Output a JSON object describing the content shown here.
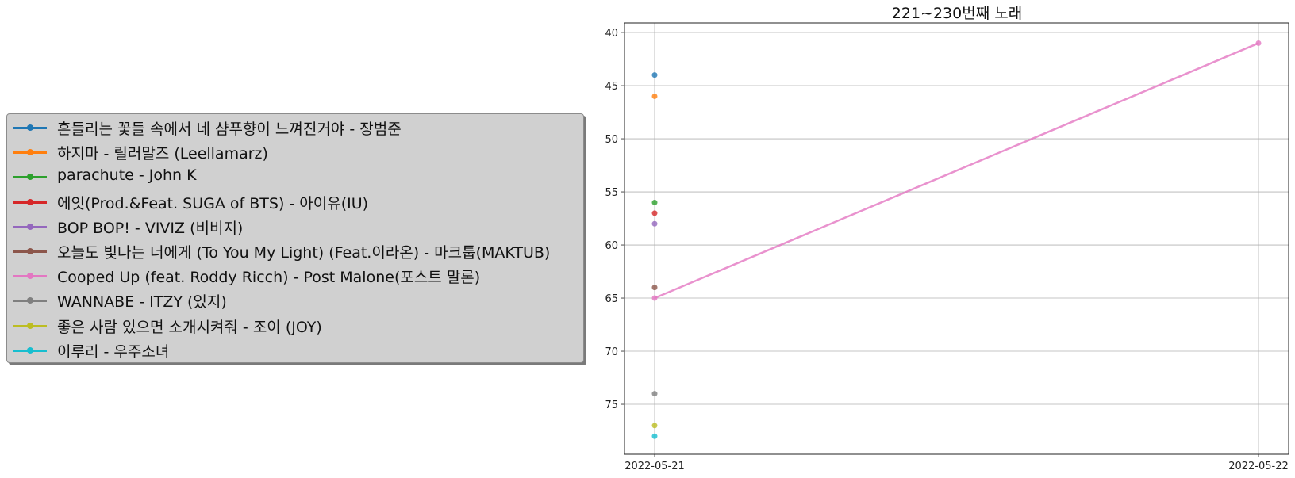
{
  "chart_data": {
    "type": "line",
    "title": "221~230번째 노래",
    "x": [
      "2022-05-21",
      "2022-05-22"
    ],
    "y_inverted": true,
    "ylim": [
      79.7,
      39.1
    ],
    "yticks": [
      40,
      45,
      50,
      55,
      60,
      65,
      70,
      75
    ],
    "grid": true,
    "legend_placement": "outside-left",
    "series": [
      {
        "name": "흔들리는 꽃들 속에서 네 샴푸향이 느껴진거야 - 장범준",
        "color": "#1f77b4",
        "values": [
          44,
          null
        ]
      },
      {
        "name": "하지마 - 릴러말즈 (Leellamarz)",
        "color": "#ff7f0e",
        "values": [
          46,
          null
        ]
      },
      {
        "name": "parachute - John K",
        "color": "#2ca02c",
        "values": [
          56,
          null
        ]
      },
      {
        "name": "에잇(Prod.&Feat. SUGA of BTS) - 아이유(IU)",
        "color": "#d62728",
        "values": [
          57,
          null
        ]
      },
      {
        "name": "BOP BOP! - VIVIZ (비비지)",
        "color": "#9467bd",
        "values": [
          58,
          null
        ]
      },
      {
        "name": "오늘도 빛나는 너에게 (To You My Light) (Feat.이라온) - 마크툽(MAKTUB)",
        "color": "#8c564b",
        "values": [
          64,
          null
        ]
      },
      {
        "name": "Cooped Up (feat. Roddy Ricch) - Post Malone(포스트 말론)",
        "color": "#e377c2",
        "values": [
          65,
          41
        ]
      },
      {
        "name": "WANNABE - ITZY (있지)",
        "color": "#7f7f7f",
        "values": [
          74,
          null
        ]
      },
      {
        "name": "좋은 사람 있으면 소개시켜줘 - 조이 (JOY)",
        "color": "#bcbd22",
        "values": [
          77,
          null
        ]
      },
      {
        "name": "이루리 - 우주소녀",
        "color": "#17becf",
        "values": [
          78,
          null
        ]
      }
    ]
  }
}
